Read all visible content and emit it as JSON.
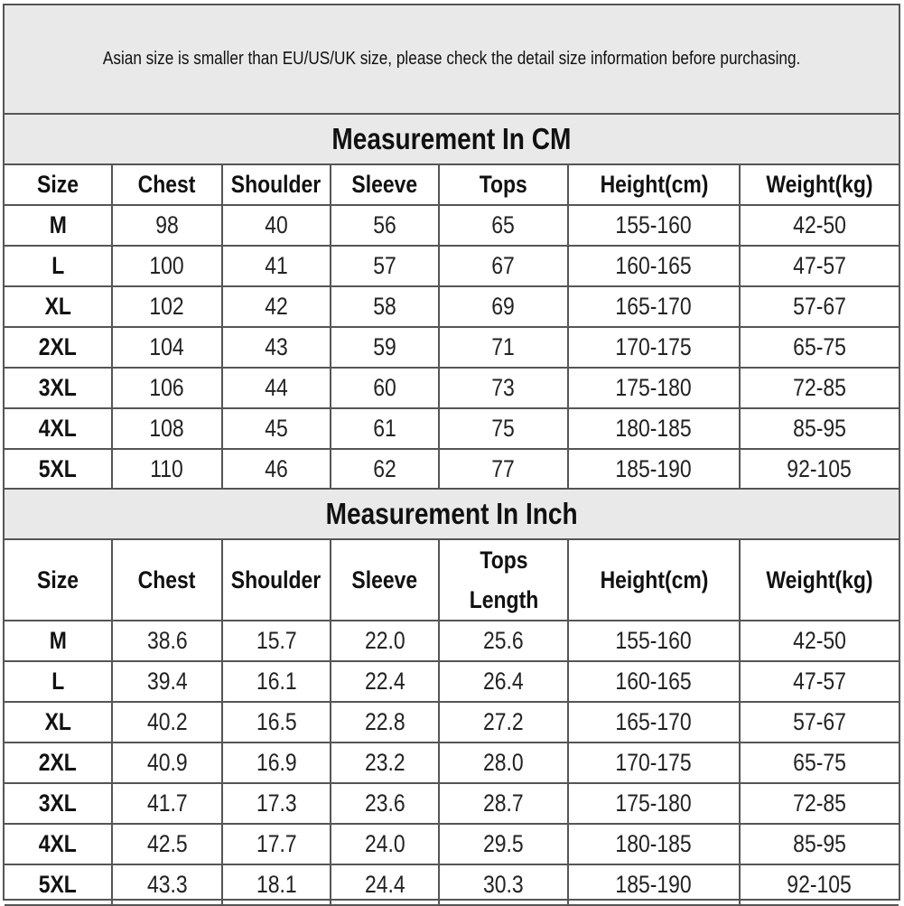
{
  "note": "Asian size is smaller than EU/US/UK size, please check the detail size information before purchasing.",
  "cm": {
    "title": "Measurement In CM",
    "headers": [
      "Size",
      "Chest",
      "Shoulder",
      "Sleeve",
      "Tops",
      "Height(cm)",
      "Weight(kg)"
    ],
    "rows": [
      [
        "M",
        "98",
        "40",
        "56",
        "65",
        "155-160",
        "42-50"
      ],
      [
        "L",
        "100",
        "41",
        "57",
        "67",
        "160-165",
        "47-57"
      ],
      [
        "XL",
        "102",
        "42",
        "58",
        "69",
        "165-170",
        "57-67"
      ],
      [
        "2XL",
        "104",
        "43",
        "59",
        "71",
        "170-175",
        "65-75"
      ],
      [
        "3XL",
        "106",
        "44",
        "60",
        "73",
        "175-180",
        "72-85"
      ],
      [
        "4XL",
        "108",
        "45",
        "61",
        "75",
        "180-185",
        "85-95"
      ],
      [
        "5XL",
        "110",
        "46",
        "62",
        "77",
        "185-190",
        "92-105"
      ]
    ]
  },
  "inch": {
    "title": "Measurement In Inch",
    "headers": [
      "Size",
      "Chest",
      "Shoulder",
      "Sleeve",
      "Tops Length",
      "Height(cm)",
      "Weight(kg)"
    ],
    "rows": [
      [
        "M",
        "38.6",
        "15.7",
        "22.0",
        "25.6",
        "155-160",
        "42-50"
      ],
      [
        "L",
        "39.4",
        "16.1",
        "22.4",
        "26.4",
        "160-165",
        "47-57"
      ],
      [
        "XL",
        "40.2",
        "16.5",
        "22.8",
        "27.2",
        "165-170",
        "57-67"
      ],
      [
        "2XL",
        "40.9",
        "16.9",
        "23.2",
        "28.0",
        "170-175",
        "65-75"
      ],
      [
        "3XL",
        "41.7",
        "17.3",
        "23.6",
        "28.7",
        "175-180",
        "72-85"
      ],
      [
        "4XL",
        "42.5",
        "17.7",
        "24.0",
        "29.5",
        "180-185",
        "85-95"
      ],
      [
        "5XL",
        "43.3",
        "18.1",
        "24.4",
        "30.3",
        "185-190",
        "92-105"
      ]
    ]
  }
}
